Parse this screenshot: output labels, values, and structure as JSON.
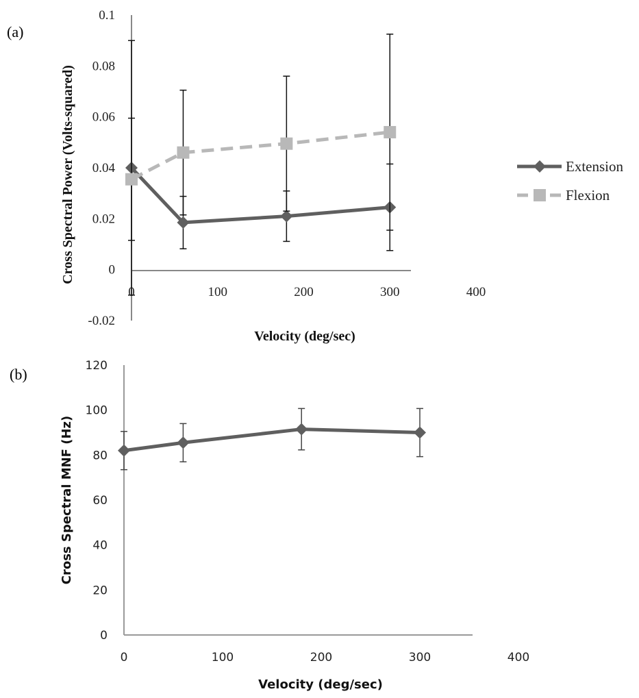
{
  "chart_data": [
    {
      "type": "line",
      "panel_label": "(a)",
      "title": "",
      "xlabel": "Velocity (deg/sec)",
      "ylabel": "Cross Spectral Power (Volts-squared)",
      "xlim": [
        0,
        400
      ],
      "ylim": [
        -0.02,
        0.1
      ],
      "xticks": [
        "0",
        "100",
        "200",
        "300",
        "400"
      ],
      "yticks": [
        "-0.02",
        "0",
        "0.02",
        "0.04",
        "0.06",
        "0.08",
        "0.1"
      ],
      "xtick_values": [
        0,
        100,
        200,
        300,
        400
      ],
      "ytick_values": [
        -0.02,
        0,
        0.02,
        0.04,
        0.06,
        0.08,
        0.1
      ],
      "grid": false,
      "legend_position": "right",
      "x": [
        0,
        60,
        180,
        300
      ],
      "series": [
        {
          "name": "Extension",
          "values": [
            0.04,
            0.0185,
            0.021,
            0.0245
          ],
          "error": [
            0.05,
            0.0103,
            0.0099,
            0.017
          ],
          "color": "#5f5f5f",
          "style": "solid",
          "marker": "diamond"
        },
        {
          "name": "Flexion",
          "values": [
            0.0355,
            0.046,
            0.0495,
            0.054
          ],
          "error": [
            0.024,
            0.0245,
            0.0265,
            0.0385
          ],
          "color": "#b8b8b8",
          "style": "dashed",
          "marker": "square"
        }
      ]
    },
    {
      "type": "line",
      "panel_label": "(b)",
      "title": "",
      "xlabel": "Velocity (deg/sec)",
      "ylabel": "Cross Spectral MNF (Hz)",
      "xlim": [
        0,
        400
      ],
      "ylim": [
        0,
        120
      ],
      "xticks": [
        "0",
        "100",
        "200",
        "300",
        "400"
      ],
      "yticks": [
        "0",
        "20",
        "40",
        "60",
        "80",
        "100",
        "120"
      ],
      "xtick_values": [
        0,
        100,
        200,
        300,
        400
      ],
      "ytick_values": [
        0,
        20,
        40,
        60,
        80,
        100,
        120
      ],
      "grid": false,
      "legend_position": "none",
      "x": [
        0,
        60,
        180,
        300
      ],
      "series": [
        {
          "name": "MNF",
          "values": [
            82,
            85.5,
            91.5,
            90
          ],
          "error": [
            8.5,
            8.5,
            9.2,
            10.7
          ],
          "color": "#5f5f5f",
          "style": "solid",
          "marker": "diamond"
        }
      ]
    }
  ]
}
